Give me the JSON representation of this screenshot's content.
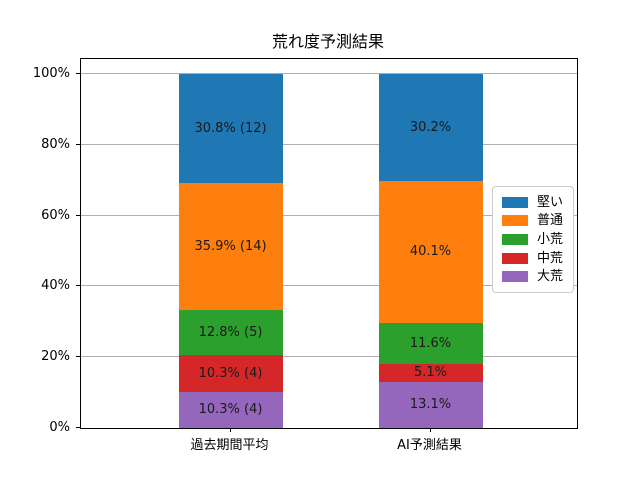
{
  "chart_data": {
    "type": "bar",
    "stacked": true,
    "title": "荒れ度予測結果",
    "categories": [
      "過去期間平均",
      "AI予測結果"
    ],
    "series": [
      {
        "name": "堅い",
        "color": "#1f77b4",
        "values": [
          30.8,
          30.2
        ],
        "labels": [
          "30.8% (12)",
          "30.2%"
        ]
      },
      {
        "name": "普通",
        "color": "#ff7f0e",
        "values": [
          35.9,
          40.1
        ],
        "labels": [
          "35.9% (14)",
          "40.1%"
        ]
      },
      {
        "name": "小荒",
        "color": "#2ca02c",
        "values": [
          12.8,
          11.6
        ],
        "labels": [
          "12.8% (5)",
          "11.6%"
        ]
      },
      {
        "name": "中荒",
        "color": "#d62728",
        "values": [
          10.3,
          5.1
        ],
        "labels": [
          "10.3% (4)",
          "5.1%"
        ]
      },
      {
        "name": "大荒",
        "color": "#9467bd",
        "values": [
          10.3,
          13.1
        ],
        "labels": [
          "10.3% (4)",
          "13.1%"
        ]
      }
    ],
    "xlabel": "",
    "ylabel": "",
    "ylim": [
      0,
      100
    ],
    "y_tick_values": [
      0,
      20,
      40,
      60,
      80,
      100
    ],
    "y_tick_labels": [
      "0%",
      "20%",
      "40%",
      "60%",
      "80%",
      "100%"
    ],
    "grid": true,
    "grid_color": "#b0b0b0",
    "text_color": "#000000",
    "legend_position": "center-right"
  }
}
